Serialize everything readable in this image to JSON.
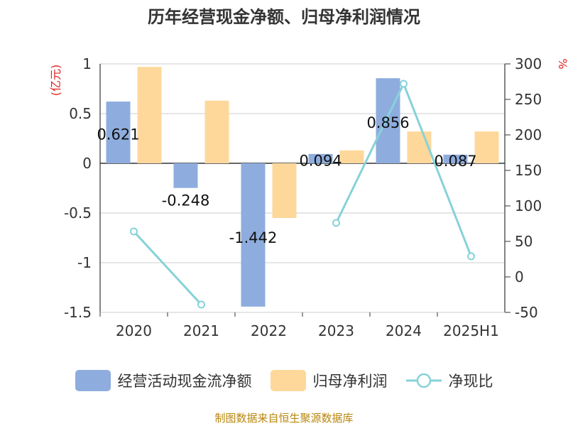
{
  "title": "历年经营现金净额、归母净利润情况",
  "source": "制图数据来自恒生聚源数据库",
  "colors": {
    "cash": "#8eadde",
    "profit": "#fed89b",
    "ratio": "#86d2d9",
    "unit": "#e02020",
    "axis": "#333333",
    "grid": "#cccccc"
  },
  "chart_data": {
    "type": "bar",
    "categories": [
      "2020",
      "2021",
      "2022",
      "2023",
      "2024",
      "2025H1"
    ],
    "left_axis": {
      "label": "(亿元)",
      "ylim": [
        -1.5,
        1
      ],
      "ticks": [
        1,
        0.5,
        0,
        -0.5,
        -1,
        -1.5
      ],
      "tick_labels": [
        "1",
        "0.5",
        "0",
        "-0.5",
        "-1",
        "-1.5"
      ]
    },
    "right_axis": {
      "label": "%",
      "ylim": [
        -50,
        300
      ],
      "ticks": [
        300,
        250,
        200,
        150,
        100,
        50,
        0,
        -50
      ],
      "tick_labels": [
        "300",
        "250",
        "200",
        "150",
        "100",
        "50",
        "0",
        "-50"
      ]
    },
    "grid": true,
    "legend_position": "bottom",
    "series": [
      {
        "name": "经营活动现金流净额",
        "type": "bar",
        "axis": "left",
        "values": [
          0.621,
          -0.248,
          -1.442,
          0.094,
          0.856,
          0.087
        ],
        "labels": [
          "0.621",
          "-0.248",
          "-1.442",
          "0.094",
          "0.856",
          "0.087"
        ]
      },
      {
        "name": "归母净利润",
        "type": "bar",
        "axis": "left",
        "values": [
          0.97,
          0.63,
          -0.55,
          0.13,
          0.32,
          0.32
        ]
      },
      {
        "name": "净现比",
        "type": "line",
        "axis": "right",
        "values": [
          64,
          -39,
          null,
          76,
          272,
          29
        ]
      }
    ]
  }
}
